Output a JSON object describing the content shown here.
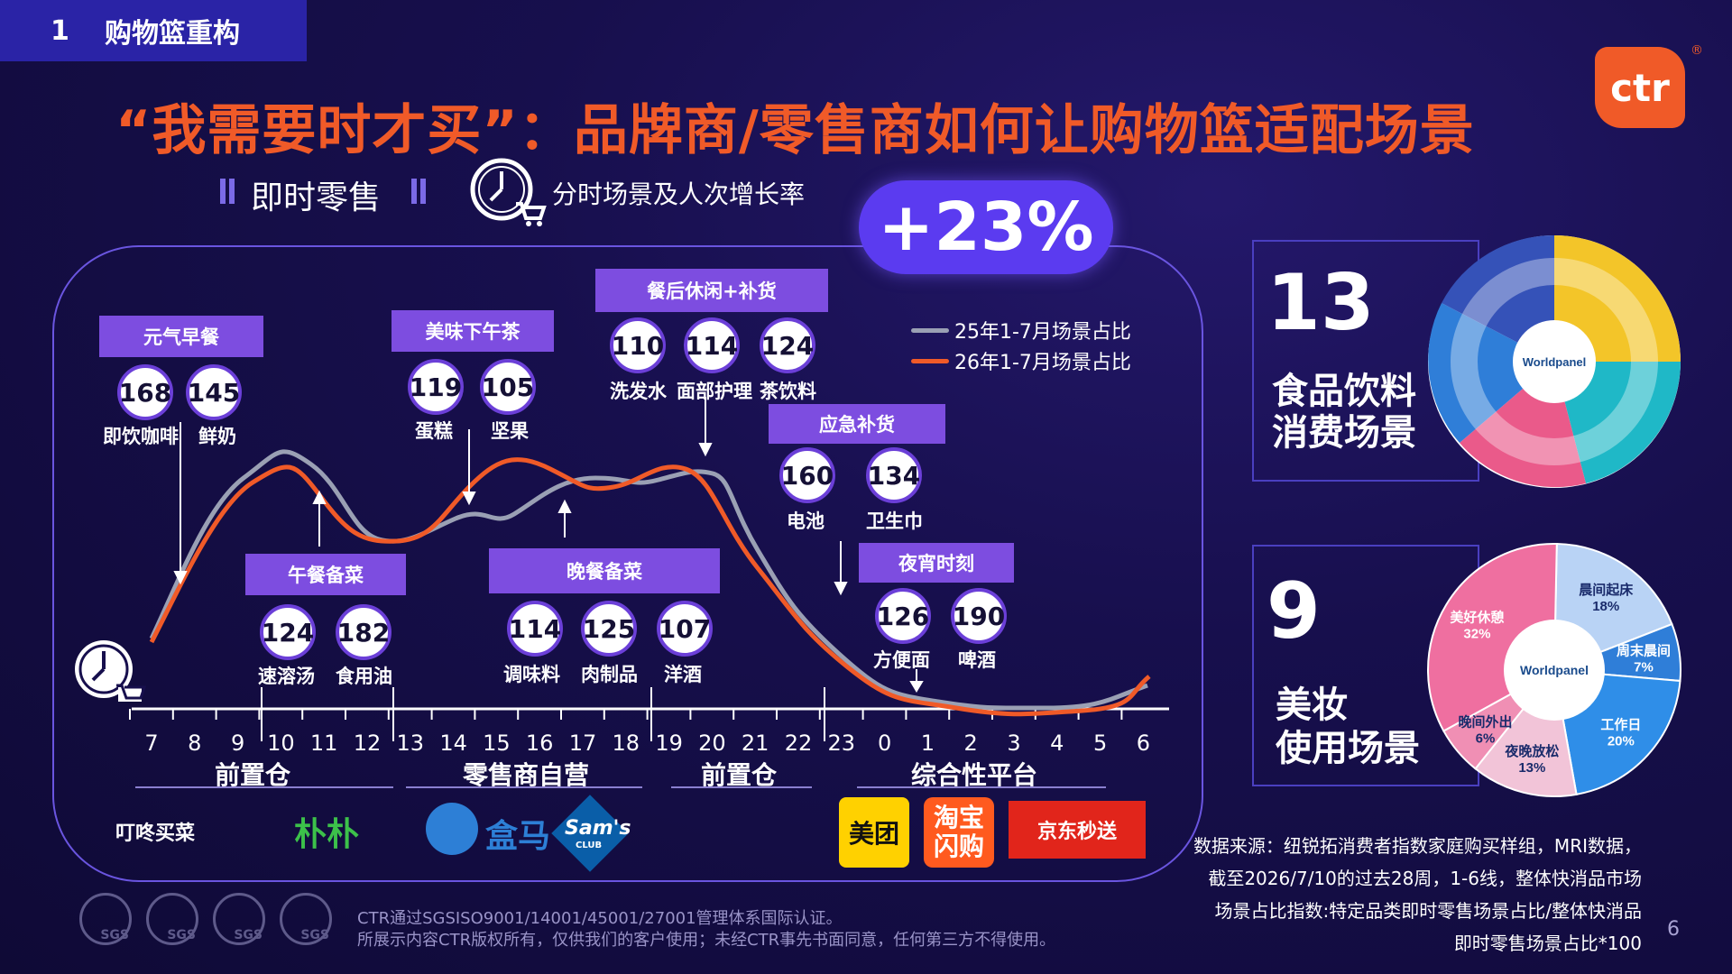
{
  "header": {
    "section_num": "1",
    "section_title": "购物篮重构"
  },
  "title": "“我需要时才买”：品牌商/零售商如何让购物篮适配场景",
  "subtitle_left": "即时零售",
  "subtitle_right": "分时场景及人次增长率",
  "growth": "+23%",
  "logo": "ctr",
  "logo_reg": "®",
  "legend": {
    "s25": "25年1-7月场景占比",
    "s26": "26年1-7月场景占比"
  },
  "colors": {
    "s25": "#9aa0b4",
    "s26": "#f05a28",
    "accent": "#7d4de0"
  },
  "scenes": [
    {
      "label": "元气早餐",
      "items": [
        {
          "value": "168",
          "name": "即饮咖啡"
        },
        {
          "value": "145",
          "name": "鲜奶"
        }
      ]
    },
    {
      "label": "午餐备菜",
      "items": [
        {
          "value": "124",
          "name": "速溶汤"
        },
        {
          "value": "182",
          "name": "食用油"
        }
      ]
    },
    {
      "label": "美味下午茶",
      "items": [
        {
          "value": "119",
          "name": "蛋糕"
        },
        {
          "value": "105",
          "name": "坚果"
        }
      ]
    },
    {
      "label": "晚餐备菜",
      "items": [
        {
          "value": "114",
          "name": "调味料"
        },
        {
          "value": "125",
          "name": "肉制品"
        },
        {
          "value": "107",
          "name": "洋酒"
        }
      ]
    },
    {
      "label": "餐后休闲+补货",
      "items": [
        {
          "value": "110",
          "name": "洗发水"
        },
        {
          "value": "114",
          "name": "面部护理"
        },
        {
          "value": "124",
          "name": "茶饮料"
        }
      ]
    },
    {
      "label": "应急补货",
      "items": [
        {
          "value": "160",
          "name": "电池"
        },
        {
          "value": "134",
          "name": "卫生巾"
        }
      ]
    },
    {
      "label": "夜宵时刻",
      "items": [
        {
          "value": "126",
          "name": "方便面"
        },
        {
          "value": "190",
          "name": "啤酒"
        }
      ]
    }
  ],
  "hours": [
    "7",
    "8",
    "9",
    "10",
    "11",
    "12",
    "13",
    "14",
    "15",
    "16",
    "17",
    "18",
    "19",
    "20",
    "21",
    "22",
    "23",
    "0",
    "1",
    "2",
    "3",
    "4",
    "5",
    "6"
  ],
  "zones": [
    "前置仓",
    "零售商自营",
    "前置仓",
    "综合性平台"
  ],
  "platforms": {
    "dingdong": "叮咚买菜",
    "pupu": "朴朴",
    "hema": "盒马",
    "sams": "Sam's",
    "sams_sub": "CLUB",
    "meituan": "美团",
    "taobao": "淘宝闪购",
    "jd": "京东秒送"
  },
  "food": {
    "number": "13",
    "label_l1": "食品饮料",
    "label_l2": "消费场景",
    "center": "Worldpanel"
  },
  "beauty": {
    "number": "9",
    "label_l1": "美妆",
    "label_l2": "使用场景",
    "center": "Worldpanel",
    "segments": [
      {
        "name": "晨间起床",
        "pct": "18%"
      },
      {
        "name": "周末晨间",
        "pct": "7%"
      },
      {
        "name": "工作日",
        "pct": "20%"
      },
      {
        "name": "夜晚放松",
        "pct": "13%"
      },
      {
        "name": "晚间外出",
        "pct": "6%"
      },
      {
        "name": "美好休憩",
        "pct": "32%"
      }
    ]
  },
  "source_note": [
    "数据来源：纽锐拓消费者指数家庭购买样组，MRI数据，",
    "截至2026/7/10的过去28周，1-6线，整体快消品市场",
    "场景占比指数:特定品类即时零售场景占比/整体快消品",
    "即时零售场景占比*100"
  ],
  "footer": [
    "CTR通过SGSISO9001/14001/45001/27001管理体系国际认证。",
    "所展示内容CTR版权所有，仅供我们的客户使用；未经CTR事先书面同意，任何第三方不得使用。"
  ],
  "sgs": "SGS",
  "page_number": "6"
}
